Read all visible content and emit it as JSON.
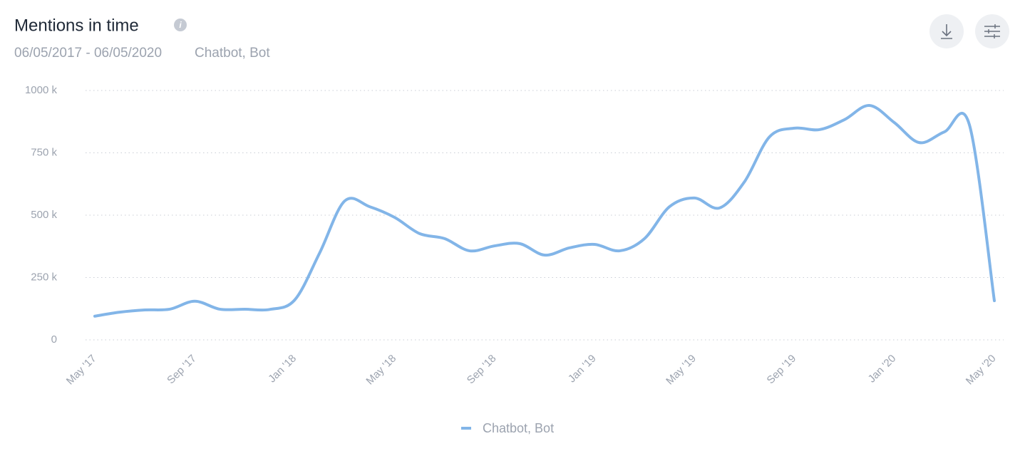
{
  "chart_data": {
    "type": "line",
    "title": "Mentions in time",
    "subtitle": "06/05/2017 - 06/05/2020",
    "query": "Chatbot, Bot",
    "categories": [
      "May '17",
      null,
      null,
      null,
      "Sep '17",
      null,
      null,
      null,
      "Jan '18",
      null,
      null,
      null,
      "May '18",
      null,
      null,
      null,
      "Sep '18",
      null,
      null,
      null,
      "Jan '19",
      null,
      null,
      null,
      "May '19",
      null,
      null,
      null,
      "Sep '19",
      null,
      null,
      null,
      "Jan '20",
      null,
      null,
      null,
      "May '20"
    ],
    "series": [
      {
        "name": "Chatbot, Bot",
        "color": "#82b5e8",
        "values": [
          95000,
          111000,
          120000,
          123000,
          155000,
          123000,
          123000,
          122000,
          160000,
          349000,
          557000,
          534000,
          491000,
          426000,
          406000,
          357000,
          377000,
          386000,
          340000,
          369000,
          383000,
          357000,
          406000,
          534000,
          569000,
          529000,
          634000,
          814000,
          849000,
          843000,
          883000,
          940000,
          871000,
          791000,
          834000,
          863000,
          157000
        ]
      }
    ],
    "ylim": [
      0,
      1000000
    ],
    "yticks": [
      0,
      {
        "value": 250000,
        "label": "250 k"
      },
      {
        "value": 500000,
        "label": "500 k"
      },
      {
        "value": 750000,
        "label": "750 k"
      },
      {
        "value": 1000000,
        "label": "1000 k"
      }
    ],
    "grid": true
  }
}
